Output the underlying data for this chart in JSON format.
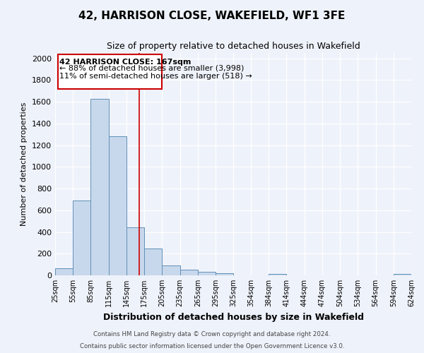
{
  "title": "42, HARRISON CLOSE, WAKEFIELD, WF1 3FE",
  "subtitle": "Size of property relative to detached houses in Wakefield",
  "xlabel": "Distribution of detached houses by size in Wakefield",
  "ylabel": "Number of detached properties",
  "bar_color": "#c8d8ec",
  "bar_edge_color": "#6090b8",
  "background_color": "#eef2fa",
  "fig_background_color": "#eef2fa",
  "grid_color": "#ffffff",
  "vline_x": 167,
  "vline_color": "#cc0000",
  "bin_edges": [
    25,
    55,
    85,
    115,
    145,
    175,
    205,
    235,
    265,
    295,
    325,
    354,
    384,
    414,
    444,
    474,
    504,
    534,
    564,
    594,
    624
  ],
  "bin_labels": [
    "25sqm",
    "55sqm",
    "85sqm",
    "115sqm",
    "145sqm",
    "175sqm",
    "205sqm",
    "235sqm",
    "265sqm",
    "295sqm",
    "325sqm",
    "354sqm",
    "384sqm",
    "414sqm",
    "444sqm",
    "474sqm",
    "504sqm",
    "534sqm",
    "564sqm",
    "594sqm",
    "624sqm"
  ],
  "bar_heights": [
    65,
    690,
    1630,
    1280,
    440,
    250,
    90,
    50,
    30,
    20,
    0,
    0,
    15,
    0,
    0,
    0,
    0,
    0,
    0,
    15
  ],
  "ylim": [
    0,
    2050
  ],
  "yticks": [
    0,
    200,
    400,
    600,
    800,
    1000,
    1200,
    1400,
    1600,
    1800,
    2000
  ],
  "annotation_title": "42 HARRISON CLOSE: 167sqm",
  "annotation_line1": "← 88% of detached houses are smaller (3,998)",
  "annotation_line2": "11% of semi-detached houses are larger (518) →",
  "footer1": "Contains HM Land Registry data © Crown copyright and database right 2024.",
  "footer2": "Contains public sector information licensed under the Open Government Licence v3.0."
}
